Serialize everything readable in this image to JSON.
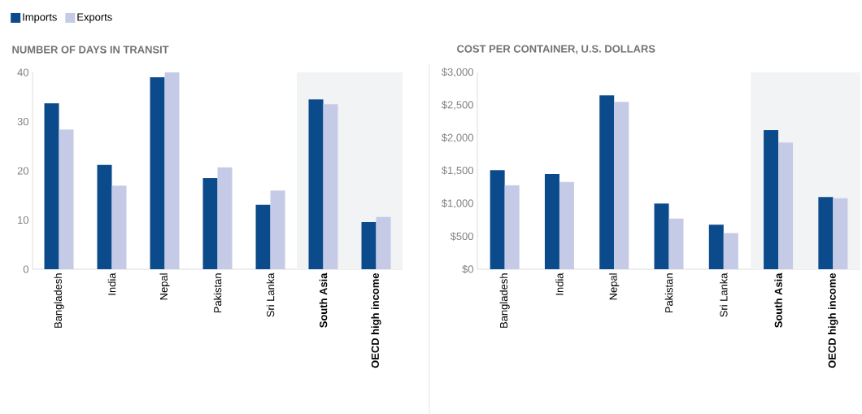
{
  "chart_data": [
    {
      "type": "bar",
      "title": "NUMBER OF DAYS IN TRANSIT",
      "categories": [
        "Bangladesh",
        "India",
        "Nepal",
        "Pakistan",
        "Sri Lanka",
        "**South Asia**",
        "**OECD high income**"
      ],
      "series": [
        {
          "name": "Imports",
          "color": "#0b4a8b",
          "values": [
            33.7,
            21.2,
            39.0,
            18.5,
            13.1,
            34.5,
            9.6
          ]
        },
        {
          "name": "Exports",
          "color": "#c5cae6",
          "values": [
            28.4,
            17.0,
            40.0,
            20.7,
            16.0,
            33.5,
            10.6
          ]
        }
      ],
      "ylim": [
        0,
        40
      ],
      "yticks": [
        0,
        10,
        20,
        30,
        40
      ],
      "legend": "top left",
      "bands": [
        {
          "axis": "x",
          "from": "**South Asia**",
          "to": "**OECD high income**",
          "color": "#f2f3f5"
        }
      ]
    },
    {
      "type": "bar",
      "title": "COST PER CONTAINER, U.S. DOLLARS",
      "categories": [
        "Bangladesh",
        "India",
        "Nepal",
        "Pakistan",
        "Sri Lanka",
        "**South Asia**",
        "**OECD high income**"
      ],
      "series": [
        {
          "color": "#0b4a8b",
          "values": [
            1510,
            1450,
            2650,
            1000,
            680,
            2120,
            1100
          ]
        },
        {
          "color": "#c5cae6",
          "values": [
            1280,
            1330,
            2550,
            770,
            550,
            1930,
            1080
          ]
        }
      ],
      "ylim": [
        0,
        3000
      ],
      "yticks": [
        {
          "value": 0,
          "label": "$0"
        },
        {
          "value": 500,
          "label": "$500"
        },
        {
          "value": 1000,
          "label": "$1,000"
        },
        {
          "value": 1500,
          "label": "$1,500"
        },
        {
          "value": 2000,
          "label": "$2,000"
        },
        {
          "value": 2500,
          "label": "$2,500"
        },
        {
          "value": 3000,
          "label": "$3,000"
        }
      ],
      "bands": [
        {
          "axis": "x",
          "from": "**South Asia**",
          "to": "**OECD high income**",
          "color": "#f2f3f5"
        }
      ]
    }
  ]
}
